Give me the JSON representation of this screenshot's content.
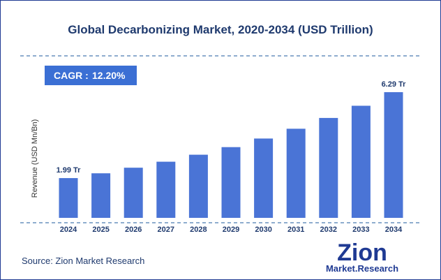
{
  "source_text": "Source: Zion Market Research",
  "cagr": {
    "label": "CAGR :",
    "value": "12.20%"
  },
  "logo": {
    "word": "Zion",
    "sub": "Market.Research"
  },
  "colors": {
    "bar": "#4a74d6",
    "cagr_box": "#3b6fd4",
    "title": "#1f3a6e",
    "dashed": "#4a7bb0"
  },
  "chart_data": {
    "type": "bar",
    "title": "Global Decarbonizing Market, 2020-2034 (USD Trillion)",
    "xlabel": "",
    "ylabel": "Revenue (USD Mn/Bn)",
    "categories": [
      "2024",
      "2025",
      "2026",
      "2027",
      "2028",
      "2029",
      "2030",
      "2031",
      "2032",
      "2033",
      "2034"
    ],
    "values": [
      1.99,
      2.23,
      2.51,
      2.81,
      3.16,
      3.54,
      3.97,
      4.46,
      5.0,
      5.61,
      6.29
    ],
    "data_labels": [
      {
        "index": 0,
        "text": "1.99 Tr"
      },
      {
        "index": 10,
        "text": "6.29 Tr"
      }
    ],
    "ylim": [
      0,
      6.29
    ],
    "grid": false
  }
}
